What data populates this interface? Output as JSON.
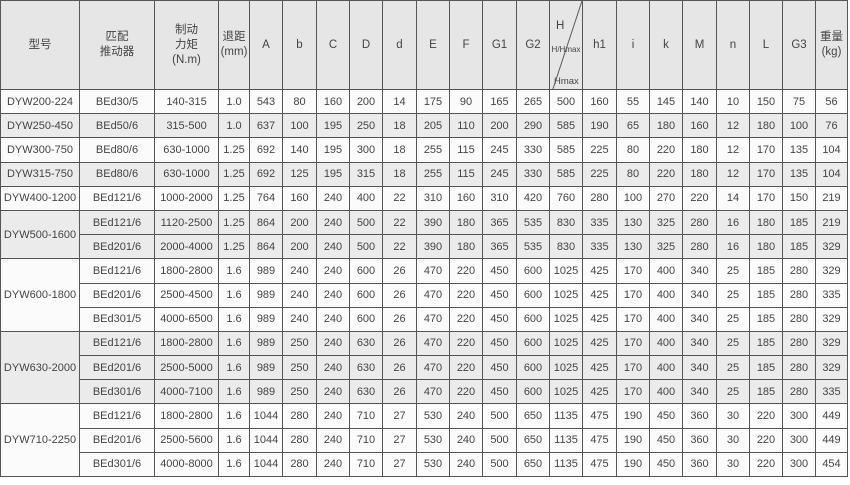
{
  "headers": [
    "型号",
    "匹配\n推动器",
    "制动\n力矩\n(N.m)",
    "退距\n(mm)",
    "A",
    "b",
    "C",
    "D",
    "d",
    "E",
    "F",
    "G1",
    "G2",
    "H/Hmax",
    "h1",
    "i",
    "k",
    "M",
    "n",
    "L",
    "G3",
    "重量\n(kg)"
  ],
  "header_h": "H",
  "header_hmax": "Hmax",
  "groups": [
    {
      "model": "DYW200-224",
      "shade": "w",
      "rows": [
        [
          "BEd30/5",
          "140-315",
          "1.0",
          "543",
          "80",
          "160",
          "200",
          "14",
          "175",
          "90",
          "165",
          "265",
          "500",
          "160",
          "55",
          "145",
          "140",
          "10",
          "150",
          "75",
          "56"
        ]
      ]
    },
    {
      "model": "DYW250-450",
      "shade": "g",
      "rows": [
        [
          "BEd50/6",
          "315-500",
          "1.0",
          "637",
          "100",
          "195",
          "250",
          "18",
          "205",
          "110",
          "200",
          "290",
          "585",
          "190",
          "65",
          "180",
          "160",
          "12",
          "180",
          "100",
          "76"
        ]
      ]
    },
    {
      "model": "DYW300-750",
      "shade": "w",
      "rows": [
        [
          "BEd80/6",
          "630-1000",
          "1.25",
          "692",
          "140",
          "195",
          "300",
          "18",
          "255",
          "115",
          "245",
          "330",
          "585",
          "225",
          "80",
          "220",
          "180",
          "12",
          "170",
          "135",
          "104"
        ]
      ]
    },
    {
      "model": "DYW315-750",
      "shade": "g",
      "rows": [
        [
          "BEd80/6",
          "630-1000",
          "1.25",
          "692",
          "125",
          "195",
          "315",
          "18",
          "255",
          "115",
          "245",
          "330",
          "585",
          "225",
          "80",
          "220",
          "180",
          "12",
          "170",
          "135",
          "104"
        ]
      ]
    },
    {
      "model": "DYW400-1200",
      "shade": "w",
      "rows": [
        [
          "BEd121/6",
          "1000-2000",
          "1.25",
          "764",
          "160",
          "240",
          "400",
          "22",
          "310",
          "160",
          "310",
          "420",
          "760",
          "280",
          "100",
          "270",
          "220",
          "14",
          "170",
          "150",
          "219"
        ]
      ]
    },
    {
      "model": "DYW500-1600",
      "shade": "g",
      "rows": [
        [
          "BEd121/6",
          "1120-2500",
          "1.25",
          "864",
          "200",
          "240",
          "500",
          "22",
          "390",
          "180",
          "365",
          "535",
          "830",
          "335",
          "130",
          "325",
          "280",
          "16",
          "180",
          "185",
          "219"
        ],
        [
          "BEd201/6",
          "2000-4000",
          "1.25",
          "864",
          "200",
          "240",
          "500",
          "22",
          "390",
          "180",
          "365",
          "535",
          "830",
          "335",
          "130",
          "325",
          "280",
          "16",
          "180",
          "185",
          "329"
        ]
      ]
    },
    {
      "model": "DYW600-1800",
      "shade": "w",
      "rows": [
        [
          "BEd121/6",
          "1800-2800",
          "1.6",
          "989",
          "240",
          "240",
          "600",
          "26",
          "470",
          "220",
          "450",
          "600",
          "1025",
          "425",
          "170",
          "400",
          "340",
          "25",
          "185",
          "280",
          "329"
        ],
        [
          "BEd201/6",
          "2500-4500",
          "1.6",
          "989",
          "240",
          "240",
          "600",
          "26",
          "470",
          "220",
          "450",
          "600",
          "1025",
          "425",
          "170",
          "400",
          "340",
          "25",
          "185",
          "280",
          "335"
        ],
        [
          "BEd301/5",
          "4000-6500",
          "1.6",
          "989",
          "240",
          "240",
          "600",
          "26",
          "470",
          "220",
          "450",
          "600",
          "1025",
          "425",
          "170",
          "400",
          "340",
          "25",
          "185",
          "280",
          "329"
        ]
      ]
    },
    {
      "model": "DYW630-2000",
      "shade": "g",
      "rows": [
        [
          "BEd121/6",
          "1800-2800",
          "1.6",
          "989",
          "250",
          "240",
          "630",
          "26",
          "470",
          "220",
          "450",
          "600",
          "1025",
          "425",
          "170",
          "400",
          "340",
          "25",
          "185",
          "280",
          "329"
        ],
        [
          "BEd201/6",
          "2500-5000",
          "1.6",
          "989",
          "250",
          "240",
          "630",
          "26",
          "470",
          "220",
          "450",
          "600",
          "1025",
          "425",
          "170",
          "400",
          "340",
          "25",
          "185",
          "280",
          "329"
        ],
        [
          "BEd301/6",
          "4000-7100",
          "1.6",
          "989",
          "250",
          "240",
          "630",
          "26",
          "470",
          "220",
          "450",
          "600",
          "1025",
          "425",
          "170",
          "400",
          "340",
          "25",
          "185",
          "280",
          "335"
        ]
      ]
    },
    {
      "model": "DYW710-2250",
      "shade": "w",
      "rows": [
        [
          "BEd121/6",
          "1800-2800",
          "1.6",
          "1044",
          "280",
          "240",
          "710",
          "27",
          "530",
          "240",
          "500",
          "650",
          "1135",
          "475",
          "190",
          "450",
          "360",
          "30",
          "220",
          "300",
          "449"
        ],
        [
          "BEd201/6",
          "2500-5600",
          "1.6",
          "1044",
          "280",
          "240",
          "710",
          "27",
          "530",
          "240",
          "500",
          "650",
          "1135",
          "475",
          "190",
          "450",
          "360",
          "30",
          "220",
          "300",
          "449"
        ],
        [
          "BEd301/6",
          "4000-8000",
          "1.6",
          "1044",
          "280",
          "240",
          "710",
          "27",
          "530",
          "240",
          "500",
          "650",
          "1135",
          "475",
          "190",
          "450",
          "360",
          "30",
          "220",
          "300",
          "454"
        ]
      ]
    }
  ]
}
